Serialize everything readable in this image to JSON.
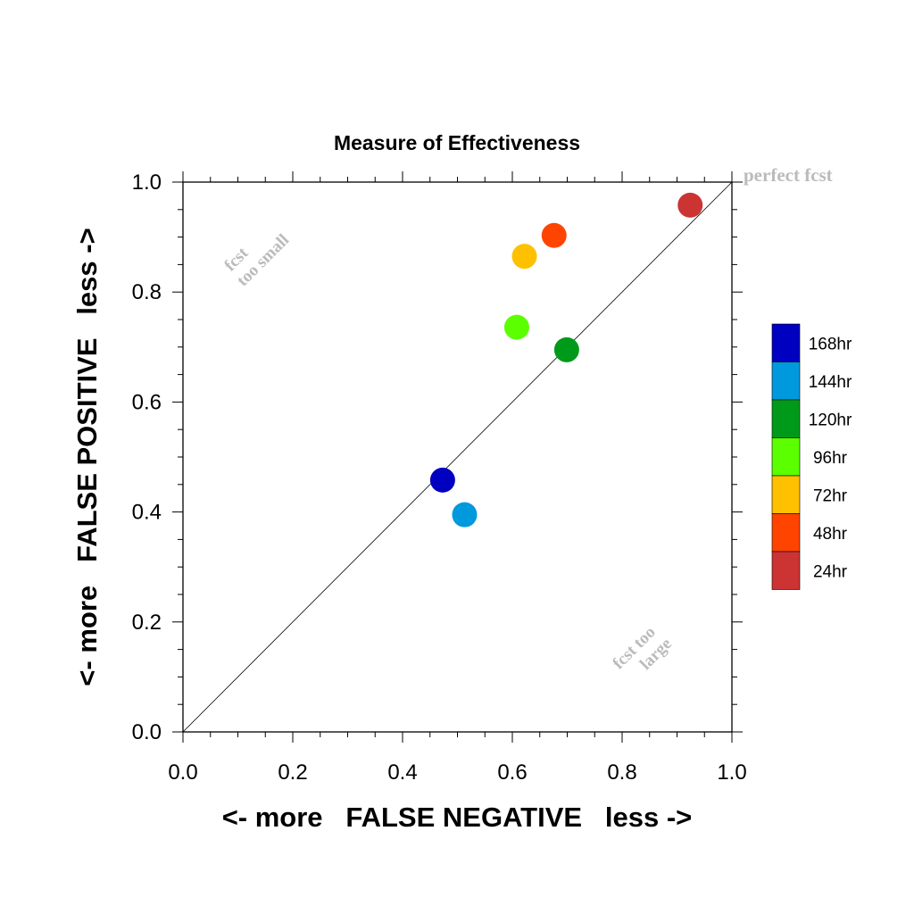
{
  "chart_data": {
    "type": "scatter",
    "title": "Measure of Effectiveness",
    "xlabel": "<- more   FALSE NEGATIVE   less ->",
    "ylabel": "<- more   FALSE POSITIVE   less ->",
    "xlim": [
      0.0,
      1.0
    ],
    "ylim": [
      0.0,
      1.0
    ],
    "xticks": [
      "0.0",
      "0.2",
      "0.4",
      "0.6",
      "0.8",
      "1.0"
    ],
    "yticks": [
      "0.0",
      "0.2",
      "0.4",
      "0.6",
      "0.8",
      "1.0"
    ],
    "grid": false,
    "diagonal_line": true,
    "legend_position": "right",
    "annotations": {
      "perfect": "perfect fcst",
      "too_small_line1": "fcst",
      "too_small_line2": "too small",
      "too_large_line1": "fcst too",
      "too_large_line2": "large"
    },
    "series": [
      {
        "name": "168hr",
        "color": "#0000c0",
        "x": 0.473,
        "y": 0.458
      },
      {
        "name": "144hr",
        "color": "#0099dd",
        "x": 0.513,
        "y": 0.395
      },
      {
        "name": "120hr",
        "color": "#009a1a",
        "x": 0.699,
        "y": 0.695
      },
      {
        "name": "96hr",
        "color": "#5cff00",
        "x": 0.608,
        "y": 0.736
      },
      {
        "name": "72hr",
        "color": "#ffc000",
        "x": 0.622,
        "y": 0.865
      },
      {
        "name": "48hr",
        "color": "#ff4400",
        "x": 0.676,
        "y": 0.903
      },
      {
        "name": "24hr",
        "color": "#cc3333",
        "x": 0.924,
        "y": 0.958
      }
    ]
  }
}
